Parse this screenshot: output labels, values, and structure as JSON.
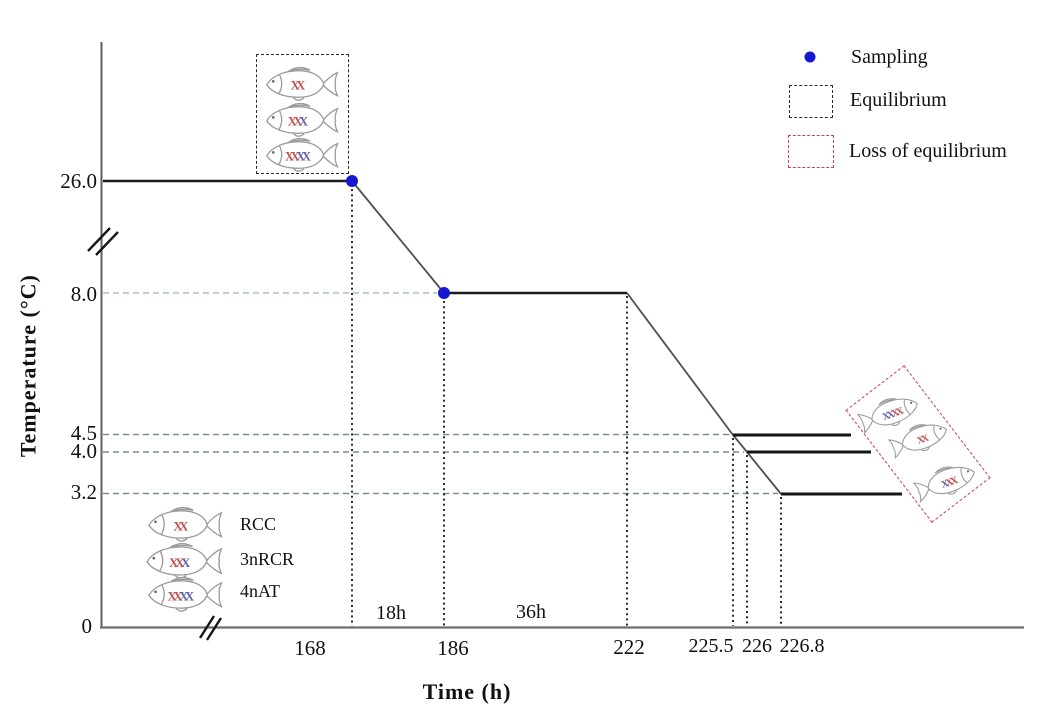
{
  "figure": {
    "y_axis": {
      "title": "Temperature  (°C)",
      "ticks": [
        "26.0",
        "8.0",
        "4.5",
        "4.0",
        "3.2",
        "0"
      ]
    },
    "x_axis": {
      "title": "Time  (h)",
      "ticks": [
        "168",
        "186",
        "222",
        "225.5",
        "226",
        "226.8"
      ]
    },
    "interval_labels": [
      "18h",
      "36h"
    ],
    "legend": [
      {
        "label": "Sampling",
        "marker": "blue-dot"
      },
      {
        "label": "Equilibrium",
        "marker": "black-dashed-box"
      },
      {
        "label": "Loss of equilibrium",
        "marker": "red-dashed-box"
      }
    ],
    "fish_key": [
      {
        "type": "RCC",
        "label": "RCC"
      },
      {
        "type": "3nRCR",
        "label": "3nRCR"
      },
      {
        "type": "4nAT",
        "label": "4nAT"
      }
    ],
    "equilibrium_box": {
      "fish": [
        "RCC",
        "3nRCR",
        "4nAT"
      ]
    },
    "loss_box": {
      "fish": [
        "4nAT",
        "RCC",
        "3nRCR"
      ]
    },
    "fish_types": {
      "RCC": [
        "red",
        "red"
      ],
      "3nRCR": [
        "red",
        "red",
        "blue"
      ],
      "4nAT": [
        "red",
        "red",
        "blue",
        "blue"
      ]
    }
  },
  "chart_data": {
    "type": "line",
    "xlabel": "Time (h)",
    "ylabel": "Temperature (°C)",
    "x_ticks": [
      168,
      186,
      222,
      225.5,
      226,
      226.8
    ],
    "y_ticks": [
      0,
      3.2,
      4.0,
      4.5,
      8.0,
      26.0
    ],
    "axis_breaks": {
      "x_axis_before": 168,
      "y_axis_between": [
        8.0,
        26.0
      ]
    },
    "grid": "off",
    "legend_position": "top-right",
    "profile_segments": [
      {
        "kind": "hold",
        "temp_c": 26.0,
        "to_h": 168
      },
      {
        "kind": "ramp",
        "from_h": 168,
        "to_h": 186,
        "from_c": 26.0,
        "to_c": 8.0,
        "duration_label": "18h"
      },
      {
        "kind": "hold",
        "temp_c": 8.0,
        "from_h": 186,
        "to_h": 222,
        "duration_label": "36h"
      },
      {
        "kind": "ramp",
        "from_h": 222,
        "from_c": 8.0,
        "branch_ends": [
          {
            "h": 225.5,
            "c": 4.5
          },
          {
            "h": 226.0,
            "c": 4.0
          },
          {
            "h": 226.8,
            "c": 3.2
          }
        ]
      },
      {
        "kind": "hold",
        "temp_c": 4.5,
        "from_h": 225.5
      },
      {
        "kind": "hold",
        "temp_c": 4.0,
        "from_h": 226.0
      },
      {
        "kind": "hold",
        "temp_c": 3.2,
        "from_h": 226.8
      }
    ],
    "sampling_points": [
      {
        "h": 168,
        "c": 26.0
      },
      {
        "h": 186,
        "c": 8.0
      }
    ],
    "guide_lines_c": [
      8.0,
      4.5,
      4.0,
      3.2
    ],
    "annotations": {
      "equilibrium_region": {
        "fish": [
          "RCC",
          "3nRCR",
          "4nAT"
        ],
        "location": "above 26.0 °C hold"
      },
      "loss_of_equilibrium_region": {
        "fish": [
          "4nAT",
          "RCC",
          "3nRCR"
        ],
        "location": "right of 4.5 / 4.0 / 3.2 °C holds"
      }
    }
  },
  "colors": {
    "sampling_dot": "#1717d2",
    "equilibrium_box": "#2b2b2b",
    "loss_box": "#cc4258",
    "plateau_line": "#1b1b1b",
    "ramp_line": "#4f4f4f",
    "guide_dash": "#74899b",
    "guide_dash_light": "#a7bfcc",
    "axis": "#5f5f5f",
    "fish_outline": "#9b9b9b",
    "chromosome_red": "#c05050",
    "chromosome_blue": "#5c61a6"
  }
}
